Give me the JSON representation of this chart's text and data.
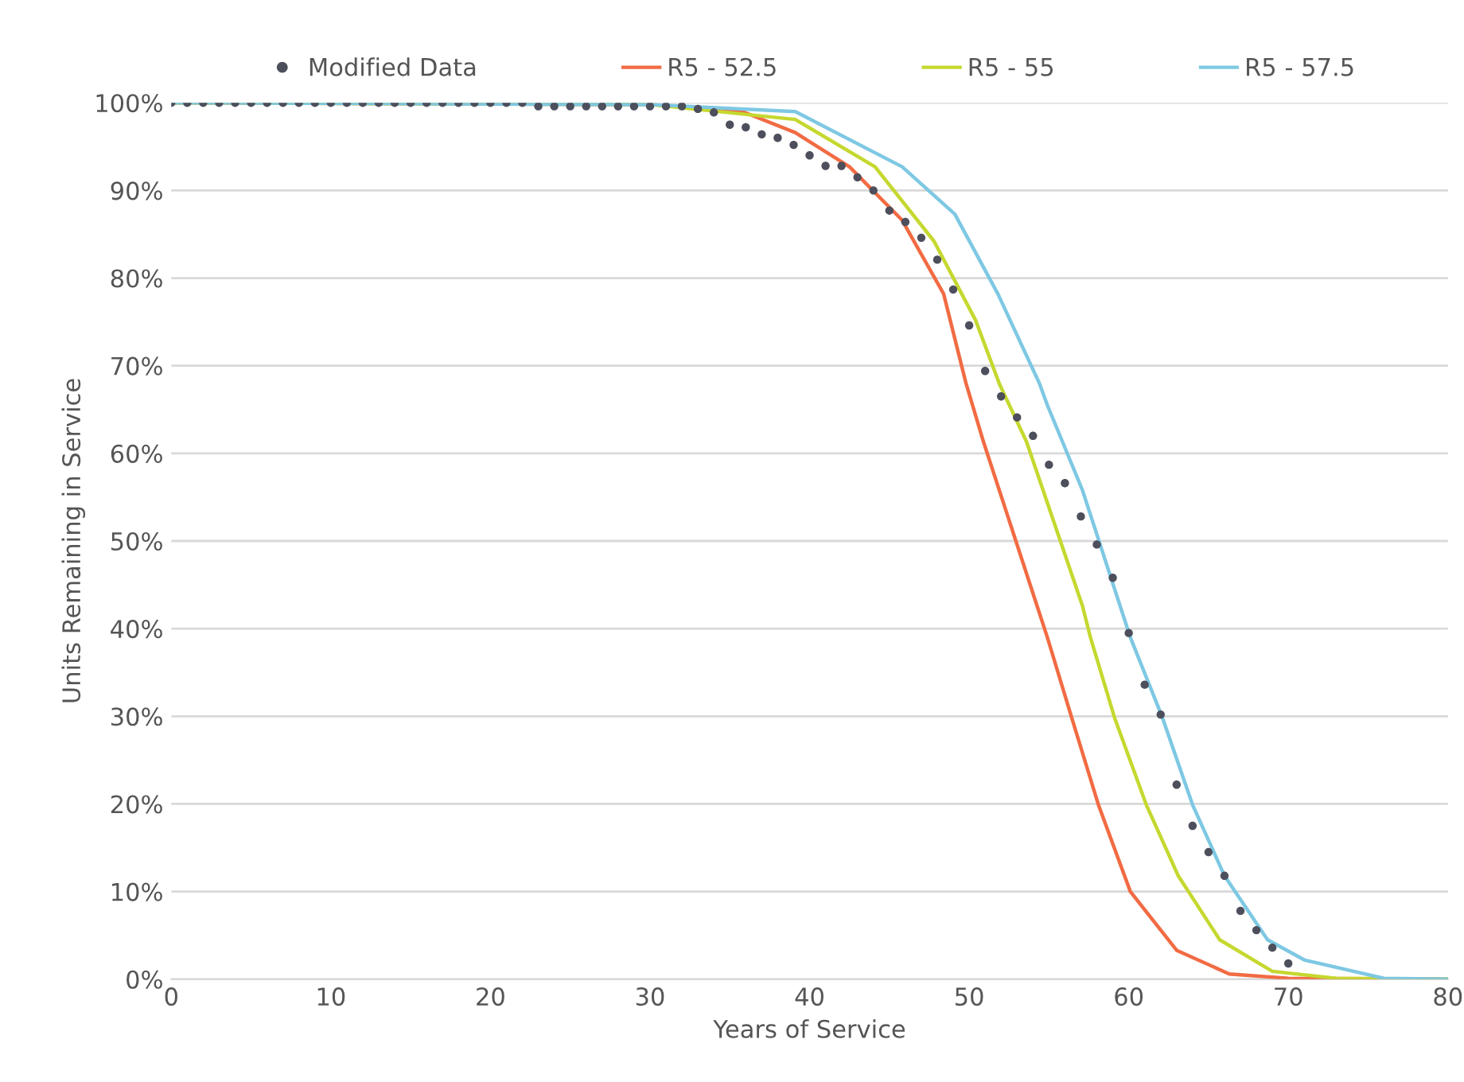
{
  "chart_data": {
    "type": "line",
    "xlabel": "Years of Service",
    "ylabel": "Units Remaining in Service",
    "xlim": [
      0,
      80
    ],
    "xticks": [
      0,
      10,
      20,
      30,
      40,
      50,
      60,
      70,
      80
    ],
    "ylim": [
      0,
      100
    ],
    "yticks": [
      {
        "value": 0,
        "label": "0%"
      },
      {
        "value": 10,
        "label": "10%"
      },
      {
        "value": 20,
        "label": "20%"
      },
      {
        "value": 30,
        "label": "30%"
      },
      {
        "value": 40,
        "label": "40%"
      },
      {
        "value": 50,
        "label": "50%"
      },
      {
        "value": 60,
        "label": "60%"
      },
      {
        "value": 70,
        "label": "70%"
      },
      {
        "value": 80,
        "label": "80%"
      },
      {
        "value": 90,
        "label": "90%"
      },
      {
        "value": 100,
        "label": "100%"
      }
    ],
    "grid": "y",
    "legend": "top",
    "series": [
      {
        "name": "Modified Data",
        "type": "scatter",
        "marker": "circle",
        "color": "#4d4f5c",
        "x": [
          0,
          1,
          2,
          3,
          4,
          5,
          6,
          7,
          8,
          9,
          10,
          11,
          12,
          13,
          14,
          15,
          16,
          17,
          18,
          19,
          20,
          21,
          22,
          23,
          24,
          25,
          26,
          27,
          28,
          29,
          30,
          31,
          32,
          33,
          34,
          35,
          36,
          37,
          38,
          39,
          40,
          41,
          42,
          43,
          44,
          45,
          46,
          47,
          48,
          49,
          50,
          51,
          52,
          53,
          54,
          55,
          56,
          57,
          58,
          59,
          60,
          61,
          62,
          63,
          64,
          65,
          66,
          67,
          68,
          69,
          70
        ],
        "values": [
          100,
          100,
          100,
          100,
          100,
          100,
          100,
          100,
          100,
          100,
          100,
          100,
          100,
          100,
          100,
          100,
          100,
          100,
          100,
          100,
          100,
          100,
          100,
          99.6,
          99.6,
          99.6,
          99.6,
          99.6,
          99.6,
          99.6,
          99.6,
          99.6,
          99.6,
          99.3,
          98.9,
          97.5,
          97.2,
          96.4,
          96.0,
          95.2,
          94.0,
          92.8,
          92.8,
          91.5,
          90.0,
          87.7,
          86.4,
          84.6,
          82.1,
          78.7,
          74.6,
          69.4,
          66.5,
          64.1,
          62.0,
          58.7,
          56.6,
          52.8,
          49.6,
          45.8,
          39.5,
          33.6,
          30.2,
          22.2,
          17.5,
          14.5,
          11.8,
          7.8,
          5.6,
          3.6,
          1.8
        ]
      },
      {
        "name": "R5 - 52.5",
        "color": "#f26b43",
        "x": [
          0,
          30,
          35.8,
          39.1,
          42.5,
          45.8,
          48.4,
          49.8,
          50.9,
          54.9,
          56.4,
          58.1,
          60.1,
          63,
          66.3,
          70,
          80
        ],
        "values": [
          100,
          99.8,
          99.0,
          96.6,
          92.7,
          86.6,
          78.2,
          68,
          61.3,
          39,
          30,
          19.9,
          10,
          3.3,
          0.6,
          0.1,
          0
        ]
      },
      {
        "name": "R5 - 55",
        "color": "#c5d82f",
        "x": [
          0,
          30,
          39.1,
          44.1,
          47.8,
          50.4,
          51.9,
          53.6,
          57.1,
          57.6,
          59.1,
          61.1,
          63.1,
          65.7,
          69,
          73,
          80
        ],
        "values": [
          100,
          99.8,
          98.1,
          92.7,
          84.2,
          75.2,
          67.9,
          61.3,
          42.6,
          39,
          29.9,
          19.9,
          11.8,
          4.5,
          0.9,
          0.1,
          0
        ]
      },
      {
        "name": "R5 - 57.5",
        "color": "#7ec8e3",
        "x": [
          0,
          30,
          39.1,
          45.8,
          49.1,
          51.8,
          54.4,
          54.9,
          57.1,
          60.1,
          62.1,
          64,
          66,
          68.7,
          71,
          76,
          80
        ],
        "values": [
          100,
          99.8,
          99.0,
          92.7,
          87.3,
          78.2,
          68,
          65.5,
          55.8,
          39,
          29.9,
          19.9,
          11.8,
          4.5,
          2.2,
          0.1,
          0
        ]
      }
    ]
  }
}
